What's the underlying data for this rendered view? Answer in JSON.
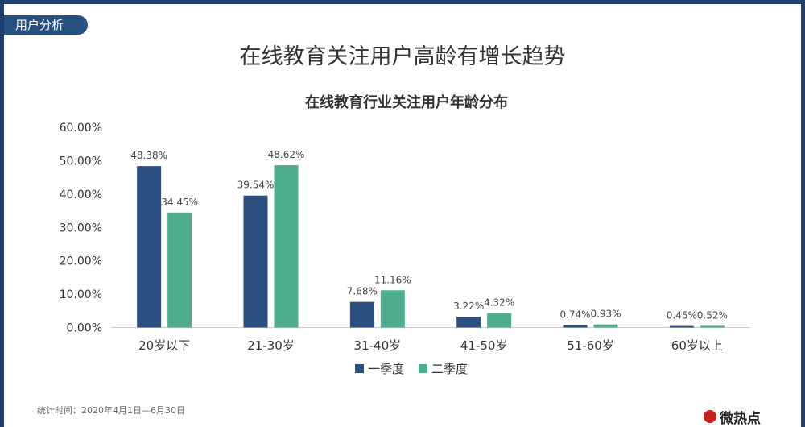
{
  "header": {
    "tag": "用户分析",
    "title": "在线教育关注用户高龄有增长趋势"
  },
  "footer": {
    "note": "统计时间：2020年4月1日—6月30日",
    "brand": "微热点"
  },
  "colors": {
    "frame": "#1f3f6e",
    "tag": "#284f82",
    "series1": "#2a4f80",
    "series2": "#4eac8f"
  },
  "chart_data": {
    "type": "bar",
    "title": "在线教育行业关注用户年龄分布",
    "categories": [
      "20岁以下",
      "21-30岁",
      "31-40岁",
      "41-50岁",
      "51-60岁",
      "60岁以上"
    ],
    "series": [
      {
        "name": "一季度",
        "values": [
          48.38,
          39.54,
          7.68,
          3.22,
          0.74,
          0.45
        ],
        "labels": [
          "48.38%",
          "39.54%",
          "7.68%",
          "3.22%",
          "0.74%",
          "0.45%"
        ]
      },
      {
        "name": "二季度",
        "values": [
          34.45,
          48.62,
          11.16,
          4.32,
          0.93,
          0.52
        ],
        "labels": [
          "34.45%",
          "48.62%",
          "11.16%",
          "4.32%",
          "0.93%",
          "0.52%"
        ]
      }
    ],
    "yticks": [
      "0.00%",
      "10.00%",
      "20.00%",
      "30.00%",
      "40.00%",
      "50.00%",
      "60.00%"
    ],
    "ylim": [
      0,
      60
    ],
    "legend_position": "bottom",
    "grid": false
  }
}
